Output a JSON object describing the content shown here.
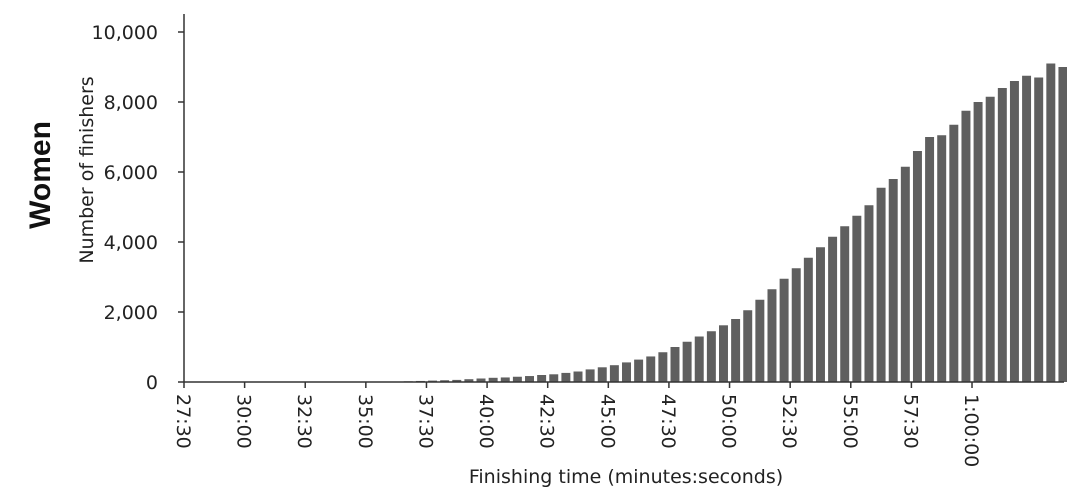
{
  "panel_label": "Women",
  "chart_data": {
    "type": "bar",
    "title": "",
    "xlabel": "Finishing time (minutes:seconds)",
    "ylabel": "Number of finishers",
    "ylim": [
      0,
      10000
    ],
    "yticks": [
      0,
      2000,
      4000,
      6000,
      8000,
      10000
    ],
    "ytick_labels": [
      "0",
      "2,000",
      "4,000",
      "6,000",
      "8,000",
      "10,000"
    ],
    "xtick_labels": [
      "27:30",
      "30:00",
      "32:30",
      "35:00",
      "37:30",
      "40:00",
      "42:30",
      "45:00",
      "47:30",
      "50:00",
      "52:30",
      "55:00",
      "57:30",
      "1:00:00"
    ],
    "bar_width_seconds": 30,
    "x_start": "27:30",
    "values": [
      10,
      10,
      10,
      10,
      10,
      10,
      10,
      10,
      10,
      10,
      10,
      10,
      10,
      10,
      10,
      10,
      10,
      10,
      20,
      30,
      40,
      50,
      60,
      80,
      100,
      120,
      130,
      150,
      170,
      200,
      220,
      260,
      300,
      360,
      420,
      480,
      560,
      640,
      730,
      850,
      1000,
      1150,
      1300,
      1450,
      1620,
      1800,
      2050,
      2350,
      2650,
      2950,
      3250,
      3550,
      3850,
      4150,
      4450,
      4750,
      5050,
      5550,
      5800,
      6150,
      6600,
      7000,
      7050,
      7350,
      7750,
      8000,
      8150,
      8400,
      8600,
      8750,
      8700,
      9100,
      9000
    ],
    "bar_color": "#5f5f5f",
    "grid": false,
    "legend": "none"
  }
}
